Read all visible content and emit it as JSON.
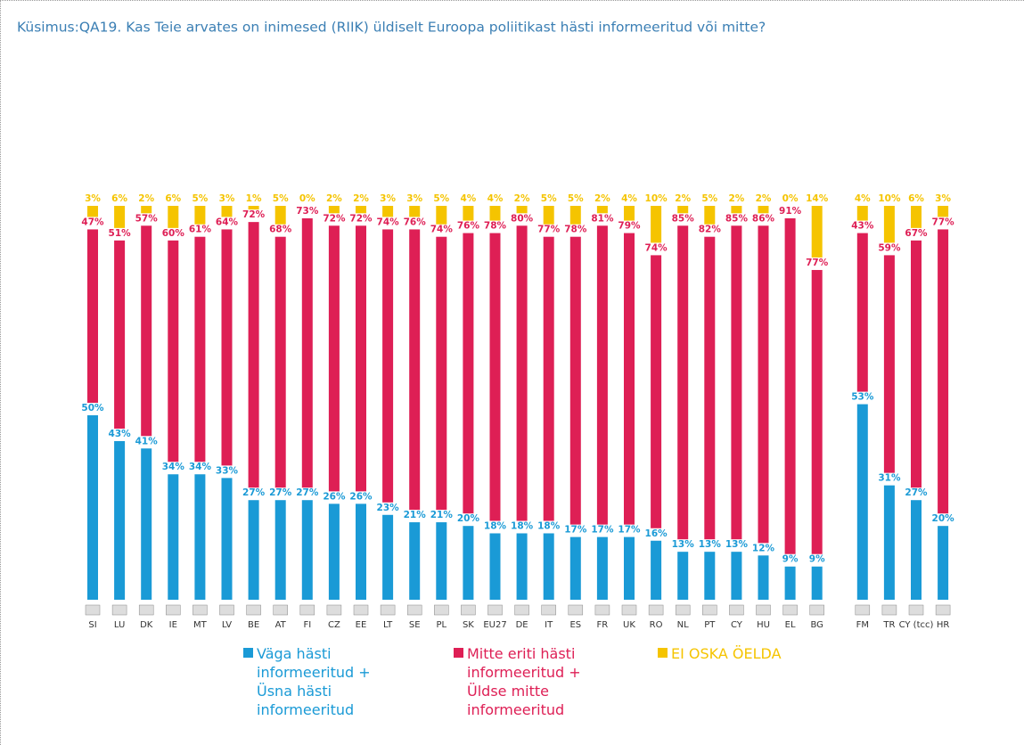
{
  "chart_data": {
    "type": "stacked_bar",
    "title": "Küsimus:QA19. Kas Teie arvates on inimesed (RIIK) üldiselt Euroopa poliitikast hästi informeeritud või mitte?",
    "categories": [
      "SI",
      "LU",
      "DK",
      "IE",
      "MT",
      "LV",
      "BE",
      "AT",
      "FI",
      "CZ",
      "EE",
      "LT",
      "SE",
      "PL",
      "SK",
      "EU27",
      "DE",
      "IT",
      "ES",
      "FR",
      "UK",
      "RO",
      "NL",
      "PT",
      "CY",
      "HU",
      "EL",
      "BG",
      "FM",
      "TR",
      "CY (tcc)",
      "HR"
    ],
    "series": [
      {
        "name": "Väga hästi informeeritud + Üsna hästi informeeritud",
        "color": "#1a9ad6",
        "values": [
          50,
          43,
          41,
          34,
          34,
          33,
          27,
          27,
          27,
          26,
          26,
          23,
          21,
          21,
          20,
          18,
          18,
          18,
          17,
          17,
          17,
          16,
          13,
          13,
          13,
          12,
          9,
          9,
          53,
          31,
          27,
          20
        ],
        "value_labels": [
          "50%",
          "43%",
          "41%",
          "34%",
          "34%",
          "33%",
          "27%",
          "27%",
          "27%",
          "26%",
          "26%",
          "23%",
          "21%",
          "21%",
          "20%",
          "18%",
          "18%",
          "18%",
          "17%",
          "17%",
          "17%",
          "16%",
          "13%",
          "13%",
          "13%",
          "12%",
          "9%",
          "9%",
          "53%",
          "31%",
          "27%",
          "20%"
        ]
      },
      {
        "name": "Mitte eriti hästi informeeritud + Üldse mitte informeeritud",
        "color": "#de1f55",
        "values": [
          47,
          51,
          57,
          60,
          61,
          64,
          72,
          68,
          73,
          72,
          72,
          74,
          76,
          74,
          76,
          78,
          80,
          77,
          78,
          81,
          79,
          74,
          85,
          82,
          85,
          86,
          91,
          77,
          43,
          59,
          67,
          77
        ],
        "value_labels": [
          "47%",
          "51%",
          "57%",
          "60%",
          "61%",
          "64%",
          "72%",
          "68%",
          "73%",
          "72%",
          "72%",
          "74%",
          "76%",
          "74%",
          "76%",
          "78%",
          "80%",
          "77%",
          "78%",
          "81%",
          "79%",
          "74%",
          "85%",
          "82%",
          "85%",
          "86%",
          "91%",
          "77%",
          "43%",
          "59%",
          "67%",
          "77%"
        ]
      },
      {
        "name": "EI OSKA ÖELDA",
        "color": "#f5c400",
        "values": [
          3,
          6,
          2,
          6,
          5,
          3,
          1,
          5,
          0,
          2,
          2,
          3,
          3,
          5,
          4,
          4,
          2,
          5,
          5,
          2,
          4,
          10,
          2,
          5,
          2,
          2,
          0,
          14,
          4,
          10,
          6,
          3
        ],
        "value_labels": [
          "3%",
          "6%",
          "2%",
          "6%",
          "5%",
          "3%",
          "1%",
          "5%",
          "0%",
          "2%",
          "2%",
          "3%",
          "3%",
          "5%",
          "4%",
          "4%",
          "2%",
          "5%",
          "5%",
          "2%",
          "4%",
          "10%",
          "2%",
          "5%",
          "2%",
          "2%",
          "0%",
          "14%",
          "4%",
          "10%",
          "6%",
          "3%"
        ]
      }
    ]
  }
}
